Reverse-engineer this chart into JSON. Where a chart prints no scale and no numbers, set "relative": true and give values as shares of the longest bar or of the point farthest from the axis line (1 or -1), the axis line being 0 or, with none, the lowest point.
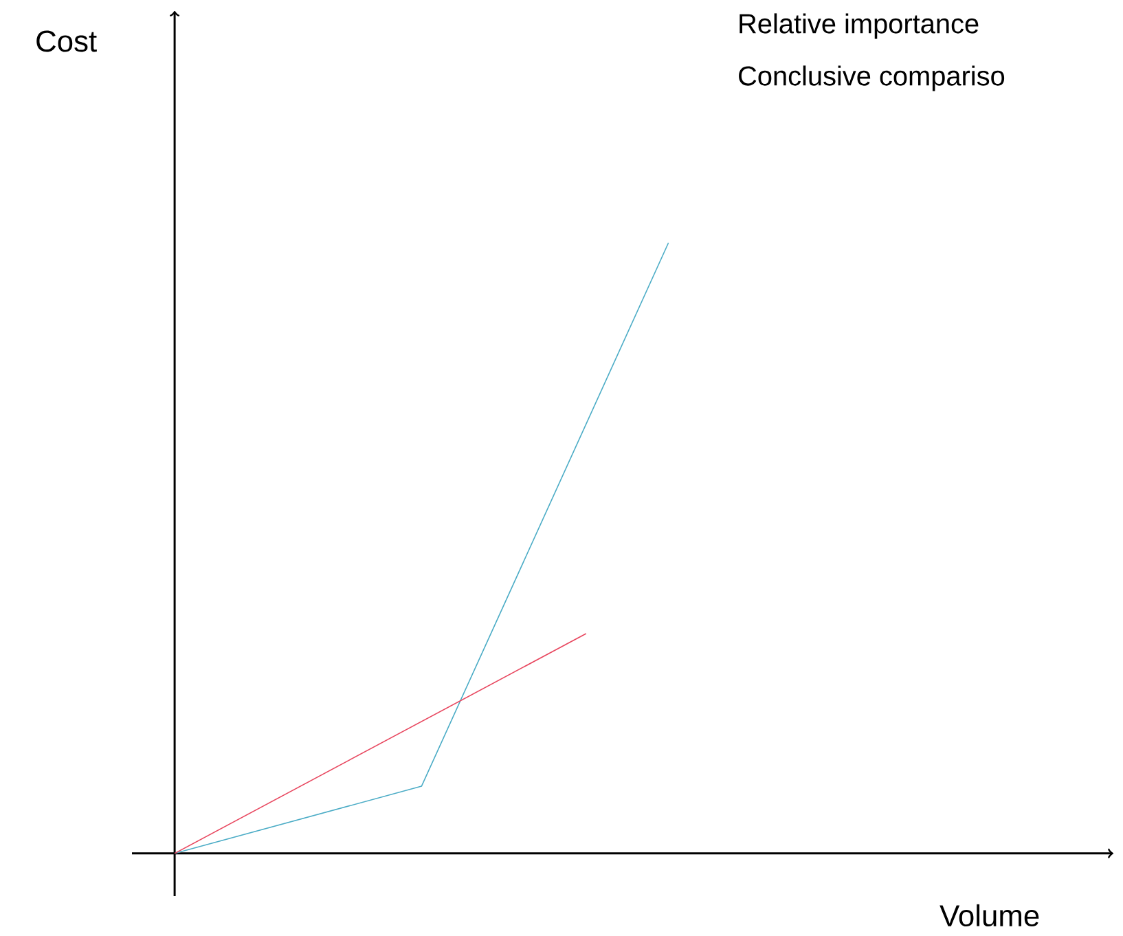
{
  "chart_data": {
    "type": "line",
    "relative": true,
    "annotations": [
      "Relative importance",
      "Conclusive compariso",
      "Cost",
      "Volume"
    ],
    "categories": [
      null,
      null,
      null,
      null,
      null,
      null,
      null
    ],
    "series": [
      {
        "color": "#4bacc6",
        "values": [
          0,
          null,
          null,
          0.11,
          null,
          null,
          1
        ]
      },
      {
        "color": "#e8475f",
        "values": [
          0,
          null,
          null,
          null,
          null,
          0.36,
          null
        ]
      }
    ]
  }
}
